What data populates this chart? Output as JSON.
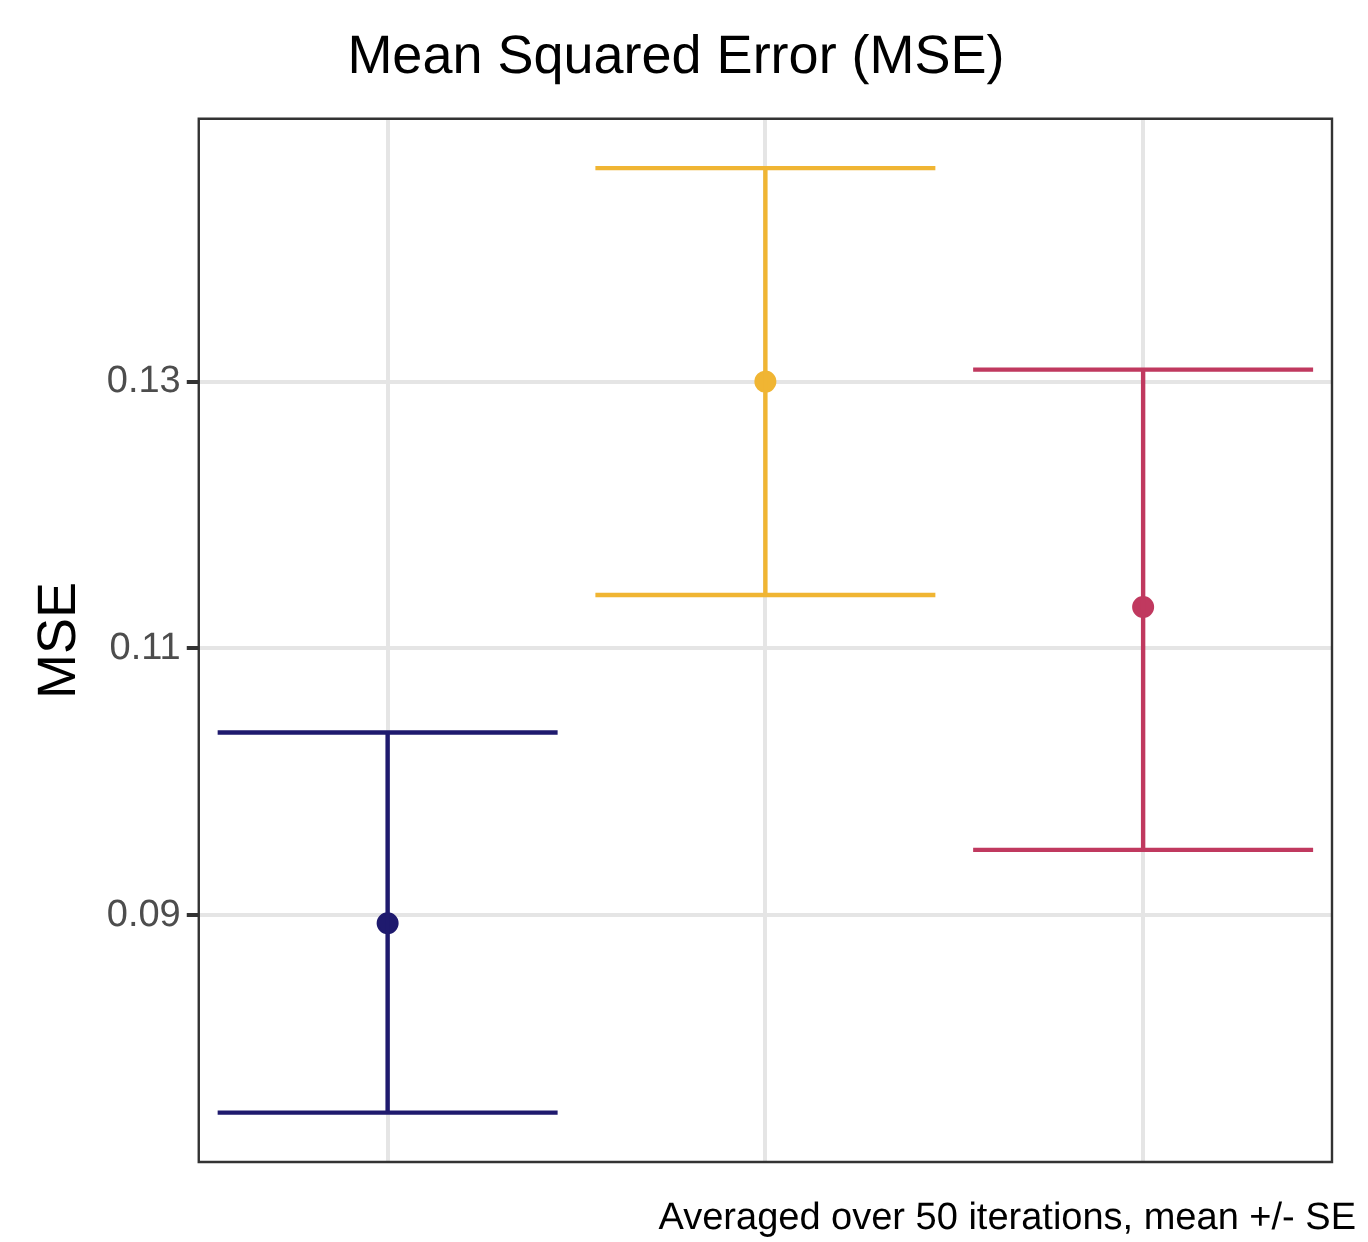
{
  "chart_data": {
    "type": "scatter",
    "title": "Mean Squared Error (MSE)",
    "ylabel": "MSE",
    "categories": [
      null,
      null,
      null
    ],
    "values": [
      0.0894,
      0.13,
      0.1131
    ],
    "colors": [
      "#1f1a6e",
      "#f0b533",
      "#c0395f"
    ],
    "errors": [
      [
        0.0752,
        0.1037
      ],
      [
        0.114,
        0.146
      ],
      [
        0.0949,
        0.1309
      ]
    ],
    "ylim": [
      0.0715,
      0.1497
    ],
    "yticks": [
      0.09,
      0.11,
      0.13
    ],
    "grid": true,
    "legend": false,
    "tick_labels": "y",
    "marker": "circle",
    "annotations": [
      "Averaged over 50 iterations, mean +/- SE"
    ]
  }
}
